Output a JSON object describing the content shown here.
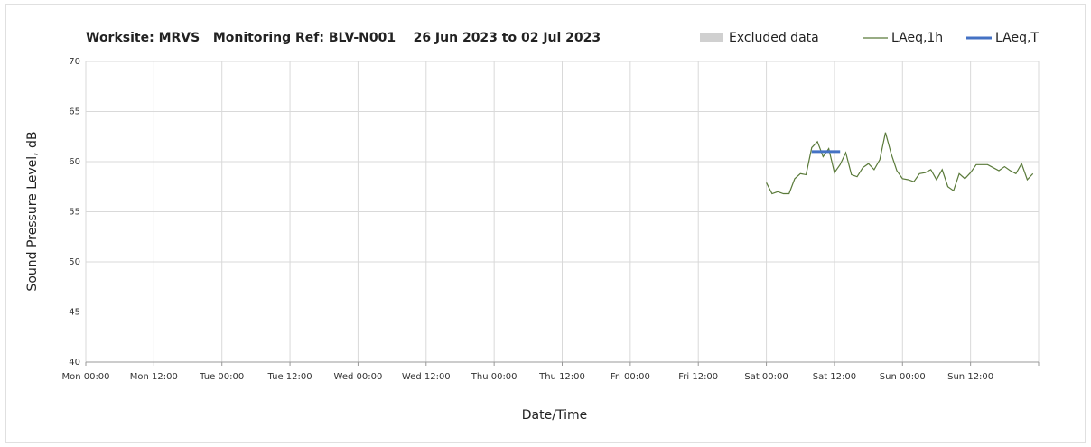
{
  "chart_data": {
    "type": "line",
    "title": "Worksite: MRVS   Monitoring Ref: BLV-N001    26 Jun 2023 to 02 Jul 2023",
    "xlabel": "Date/Time",
    "ylabel": "Sound Pressure Level, dB",
    "xlim": [
      0,
      168
    ],
    "xticks": [
      {
        "value": 0,
        "label": "Mon 00:00"
      },
      {
        "value": 12,
        "label": "Mon 12:00"
      },
      {
        "value": 24,
        "label": "Tue 00:00"
      },
      {
        "value": 36,
        "label": "Tue 12:00"
      },
      {
        "value": 48,
        "label": "Wed 00:00"
      },
      {
        "value": 60,
        "label": "Wed 12:00"
      },
      {
        "value": 72,
        "label": "Thu 00:00"
      },
      {
        "value": 84,
        "label": "Thu 12:00"
      },
      {
        "value": 96,
        "label": "Fri 00:00"
      },
      {
        "value": 108,
        "label": "Fri 12:00"
      },
      {
        "value": 120,
        "label": "Sat 00:00"
      },
      {
        "value": 132,
        "label": "Sat 12:00"
      },
      {
        "value": 144,
        "label": "Sun 00:00"
      },
      {
        "value": 156,
        "label": "Sun 12:00"
      },
      {
        "value": 168,
        "label": ""
      }
    ],
    "ylim": [
      40,
      70
    ],
    "yticks": [
      40,
      45,
      50,
      55,
      60,
      65,
      70
    ],
    "grid": true,
    "legend": "top-right",
    "series": [
      {
        "name": "Excluded data",
        "color": "#d0d0d0",
        "x": [],
        "values": []
      },
      {
        "name": "LAeq,1h",
        "color": "#5a7a3a",
        "x": [
          120,
          121,
          122,
          123,
          124,
          125,
          126,
          127,
          128,
          129,
          130,
          131,
          132,
          133,
          134,
          135,
          136,
          137,
          138,
          139,
          140,
          141,
          142,
          143,
          144,
          145,
          146,
          147,
          148,
          149,
          150,
          151,
          152,
          153,
          154,
          155,
          156,
          157,
          158,
          159,
          160,
          161,
          162,
          163,
          164,
          165,
          166,
          167
        ],
        "values": [
          57.9,
          56.8,
          57.0,
          56.8,
          56.8,
          58.3,
          58.8,
          58.7,
          61.4,
          62.0,
          60.5,
          61.3,
          58.9,
          59.7,
          60.9,
          58.7,
          58.5,
          59.4,
          59.8,
          59.2,
          60.2,
          62.9,
          60.8,
          59.1,
          58.3,
          58.2,
          58.0,
          58.8,
          58.9,
          59.2,
          58.2,
          59.2,
          57.5,
          57.1,
          58.8,
          58.3,
          58.9,
          59.7,
          59.7,
          59.7,
          59.4,
          59.1,
          59.5,
          59.1,
          58.8,
          59.8,
          58.2,
          58.8
        ]
      },
      {
        "name": "LAeq,T",
        "color": "#4472c4",
        "x": [
          128,
          133
        ],
        "values": [
          61,
          61
        ]
      }
    ]
  }
}
